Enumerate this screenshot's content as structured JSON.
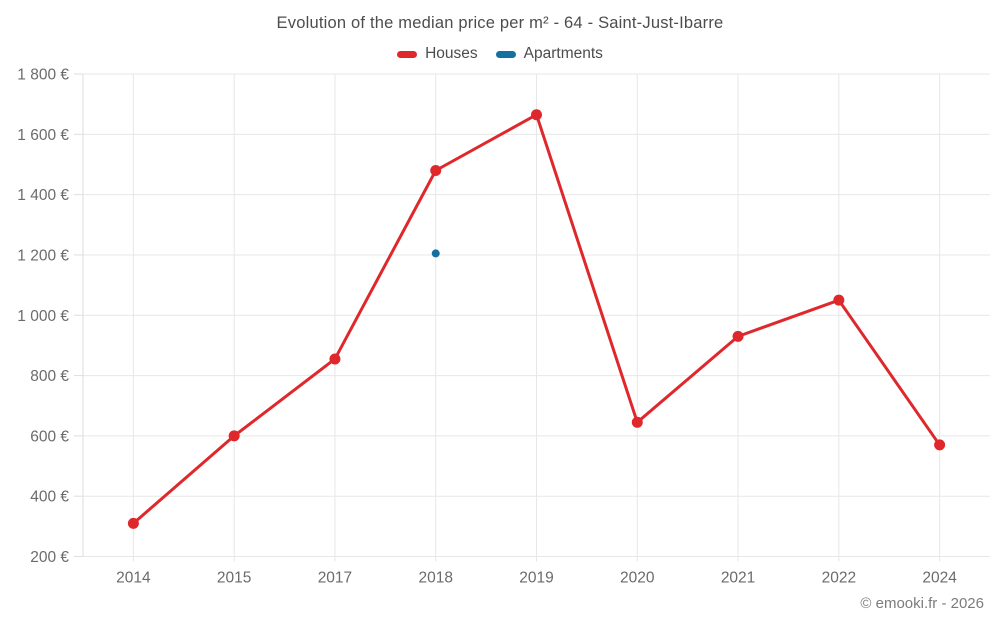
{
  "title": "Evolution of the median price per m² - 64 - Saint-Just-Ibarre",
  "footer": {
    "copyright": "© emooki.fr - 2026"
  },
  "colors": {
    "houses": "#df282c",
    "apartments": "#1470a0",
    "grid": "#e7e7e7",
    "axis": "#dedede",
    "axis_text": "#6b6b6b",
    "title_text": "#4d4d4d",
    "footer_text": "#7c7c7c",
    "background": "#ffffff"
  },
  "chart_data": {
    "type": "line",
    "title": "Evolution of the median price per m² - 64 - Saint-Just-Ibarre",
    "xlabel": "",
    "ylabel": "",
    "categories": [
      "2014",
      "2015",
      "2017",
      "2018",
      "2019",
      "2020",
      "2021",
      "2022",
      "2024"
    ],
    "series": [
      {
        "name": "Houses",
        "color": "#df282c",
        "marker_radius": 5.5,
        "line_width": 3,
        "values": [
          310,
          600,
          855,
          1480,
          1665,
          645,
          930,
          1050,
          570
        ]
      },
      {
        "name": "Apartments",
        "color": "#1470a0",
        "marker_radius": 4,
        "line_width": 3,
        "values": [
          null,
          null,
          null,
          1205,
          null,
          null,
          null,
          null,
          null
        ]
      }
    ],
    "ylim": [
      200,
      1800
    ],
    "y_tick_step": 200,
    "y_suffix": " €",
    "y_ticks": [
      {
        "value": 200,
        "label": "200 €"
      },
      {
        "value": 400,
        "label": "400 €"
      },
      {
        "value": 600,
        "label": "600 €"
      },
      {
        "value": 800,
        "label": "800 €"
      },
      {
        "value": 1000,
        "label": "1 000 €"
      },
      {
        "value": 1200,
        "label": "1 200 €"
      },
      {
        "value": 1400,
        "label": "1 400 €"
      },
      {
        "value": 1600,
        "label": "1 600 €"
      },
      {
        "value": 1800,
        "label": "1 800 €"
      }
    ],
    "grid": true,
    "legend_position": "top"
  }
}
